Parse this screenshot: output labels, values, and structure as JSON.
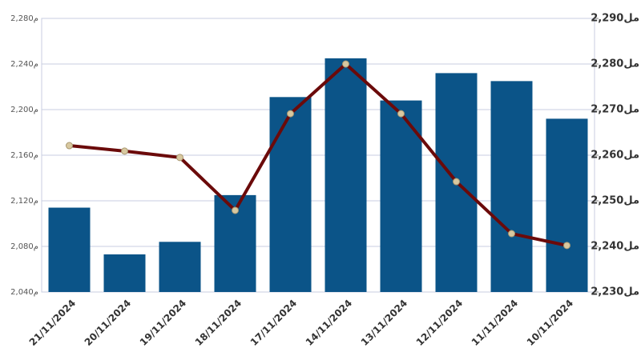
{
  "chart_data": {
    "type": "bar-line",
    "categories": [
      "21/11/2024",
      "20/11/2024",
      "19/11/2024",
      "18/11/2024",
      "17/11/2024",
      "14/11/2024",
      "13/11/2024",
      "12/11/2024",
      "11/11/2024",
      "10/11/2024"
    ],
    "series": [
      {
        "type": "bar",
        "color": "#0b5488",
        "values": [
          2114,
          2073,
          2084,
          2125,
          2211,
          2245,
          2208,
          2232,
          2225,
          2192
        ]
      },
      {
        "type": "line",
        "axis": "y2",
        "color": "#6b0a0a",
        "marker_color": "#d8c8a0",
        "values": [
          2262.1,
          2260.9,
          2259.5,
          2247.9,
          2269.1,
          2280,
          2269.1,
          2254.2,
          2242.8,
          2240.2
        ]
      }
    ],
    "ylim": [
      2040,
      2280
    ],
    "yticks": [
      {
        "value": 2040,
        "label": "2,040م"
      },
      {
        "value": 2080,
        "label": "2,080م"
      },
      {
        "value": 2120,
        "label": "2,120م"
      },
      {
        "value": 2160,
        "label": "2,160م"
      },
      {
        "value": 2200,
        "label": "2,200م"
      },
      {
        "value": 2240,
        "label": "2,240م"
      },
      {
        "value": 2280,
        "label": "2,280م"
      }
    ],
    "y2lim": [
      2230,
      2290
    ],
    "y2ticks": [
      {
        "value": 2230,
        "label": "2,230مل"
      },
      {
        "value": 2240,
        "label": "2,240مل"
      },
      {
        "value": 2250,
        "label": "2,250مل"
      },
      {
        "value": 2260,
        "label": "2,260مل"
      },
      {
        "value": 2270,
        "label": "2,270مل"
      },
      {
        "value": 2280,
        "label": "2,280مل"
      },
      {
        "value": 2290,
        "label": "2,290مل"
      }
    ],
    "grid": true
  }
}
